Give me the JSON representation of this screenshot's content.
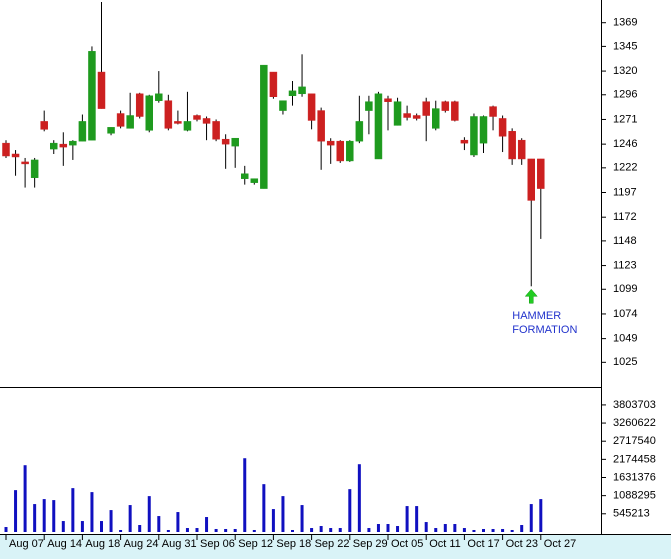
{
  "chart_data": [
    {
      "type": "candlestick",
      "open": [
        1247,
        1236,
        1228,
        1212,
        1269,
        1241,
        1246,
        1245,
        1249,
        1250,
        1319,
        1257,
        1277,
        1262,
        1297,
        1260,
        1290,
        1290,
        1269,
        1260,
        1275,
        1272,
        1269,
        1251,
        1244,
        1211,
        1207,
        1201,
        1319,
        1280,
        1295,
        1297,
        1297,
        1280,
        1249,
        1249,
        1229,
        1249,
        1280,
        1231,
        1292,
        1265,
        1277,
        1275,
        1289,
        1262,
        1289,
        1289,
        1250,
        1235,
        1247,
        1284,
        1272,
        1259,
        1250,
        1231,
        1231
      ],
      "high": [
        1250,
        1240,
        1232,
        1232,
        1280,
        1250,
        1258,
        1250,
        1276,
        1345,
        1390,
        1263,
        1280,
        1298,
        1298,
        1296,
        1320,
        1296,
        1280,
        1299,
        1276,
        1274,
        1271,
        1256,
        1252,
        1224,
        1211,
        1326,
        1319,
        1290,
        1310,
        1337,
        1297,
        1283,
        1252,
        1250,
        1250,
        1295,
        1295,
        1299,
        1295,
        1293,
        1285,
        1277,
        1293,
        1290,
        1290,
        1290,
        1253,
        1277,
        1275,
        1285,
        1275,
        1262,
        1252,
        1231,
        1231
      ],
      "low": [
        1232,
        1214,
        1202,
        1202,
        1259,
        1236,
        1224,
        1230,
        1249,
        1250,
        1282,
        1255,
        1262,
        1262,
        1272,
        1258,
        1288,
        1260,
        1266,
        1259,
        1269,
        1250,
        1249,
        1221,
        1222,
        1205,
        1205,
        1201,
        1292,
        1276,
        1285,
        1294,
        1261,
        1220,
        1226,
        1227,
        1228,
        1247,
        1256,
        1231,
        1260,
        1265,
        1270,
        1270,
        1249,
        1260,
        1278,
        1269,
        1240,
        1233,
        1237,
        1260,
        1238,
        1225,
        1225,
        1102,
        1150
      ],
      "close": [
        1234,
        1233,
        1226,
        1230,
        1261,
        1247,
        1243,
        1249,
        1269,
        1340,
        1282,
        1263,
        1264,
        1275,
        1274,
        1295,
        1297,
        1262,
        1267,
        1269,
        1271,
        1267,
        1251,
        1246,
        1252,
        1216,
        1211,
        1326,
        1294,
        1290,
        1300,
        1304,
        1270,
        1249,
        1245,
        1229,
        1249,
        1269,
        1289,
        1297,
        1289,
        1289,
        1273,
        1272,
        1275,
        1282,
        1280,
        1270,
        1247,
        1274,
        1274,
        1274,
        1254,
        1231,
        1231,
        1189,
        1201
      ],
      "up_color": "#1e9a1e",
      "down_color": "#cc2020",
      "ylim": [
        1000,
        1392
      ],
      "yticks": [
        1369,
        1345,
        1320,
        1296,
        1271,
        1246,
        1222,
        1197,
        1172,
        1148,
        1123,
        1099,
        1074,
        1049,
        1025
      ],
      "annotation": {
        "lines": [
          "HAMMER",
          "FORMATION"
        ],
        "color": "#2233cc",
        "arrow_color": "#22cc22",
        "index": 55
      }
    },
    {
      "type": "bar",
      "values": [
        149000,
        1253000,
        1999000,
        836000,
        985000,
        955000,
        328000,
        1313000,
        328000,
        1194000,
        328000,
        656000,
        60000,
        806000,
        209000,
        1074000,
        477000,
        60000,
        597000,
        119000,
        119000,
        448000,
        90000,
        90000,
        90000,
        2208000,
        60000,
        1432000,
        686000,
        1074000,
        60000,
        806000,
        119000,
        179000,
        119000,
        119000,
        1283000,
        2029000,
        119000,
        239000,
        239000,
        179000,
        776000,
        776000,
        298000,
        119000,
        239000,
        239000,
        119000,
        60000,
        90000,
        90000,
        90000,
        60000,
        209000,
        836000,
        985000
      ],
      "color": "#1010c0",
      "ylim": [
        0,
        4310000
      ],
      "yticks": [
        3803703,
        3260622,
        2717540,
        2174458,
        1631376,
        1088295,
        545213
      ],
      "x_labels": [
        "1",
        "Aug 07",
        "Aug 14",
        "Aug 18",
        "Aug 24",
        "Aug 31",
        "Sep 06",
        "Sep 12",
        "Sep 18",
        "Sep 22",
        "Sep 29",
        "Oct 05",
        "Oct 11",
        "Oct 17",
        "Oct 23",
        "Oct 27"
      ]
    }
  ]
}
